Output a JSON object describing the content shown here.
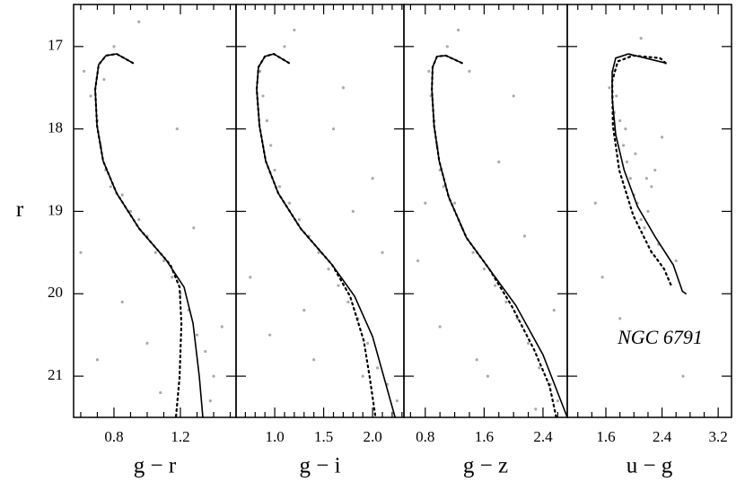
{
  "chart_data": [
    {
      "type": "scatter",
      "xlabel": "g − r",
      "ylabel": "r",
      "xlim": [
        0.557,
        1.535
      ],
      "ylim": [
        16.49,
        21.5
      ],
      "y_inverted": true,
      "xticks": [
        0.8,
        1.2
      ],
      "xminorticks": [
        0.6,
        0.7,
        0.9,
        1.0,
        1.1,
        1.3,
        1.4,
        1.5
      ],
      "yticks": [
        17,
        18,
        19,
        20,
        21
      ],
      "series": [
        {
          "style": "points",
          "color": "#aaaaaa",
          "x": [
            0.62,
            0.66,
            0.7,
            0.72,
            0.75,
            0.78,
            0.8,
            0.74,
            0.85,
            0.9,
            0.95,
            1.0,
            1.05,
            1.1,
            1.15,
            1.2,
            1.25,
            1.3,
            1.35,
            1.4,
            1.45,
            0.6,
            0.7,
            0.95,
            1.08,
            1.28,
            1.38,
            0.85,
            1.0,
            1.18
          ],
          "y": [
            17.3,
            17.6,
            17.9,
            18.2,
            18.5,
            18.7,
            17.0,
            17.4,
            18.8,
            19.0,
            19.1,
            19.3,
            19.5,
            19.6,
            19.8,
            20.0,
            20.2,
            20.5,
            20.7,
            21.0,
            20.4,
            19.5,
            20.8,
            16.7,
            21.2,
            19.2,
            21.3,
            20.1,
            20.6,
            18.0
          ]
        },
        {
          "style": "solid",
          "color": "#000000",
          "x": [
            0.914,
            0.816,
            0.752,
            0.708,
            0.687,
            0.698,
            0.735,
            0.816,
            0.952,
            1.114,
            1.222,
            1.276,
            1.314,
            1.335
          ],
          "y": [
            17.2,
            17.09,
            17.11,
            17.22,
            17.52,
            17.96,
            18.39,
            18.78,
            19.21,
            19.59,
            19.92,
            20.36,
            21.01,
            21.5
          ]
        },
        {
          "style": "dotted",
          "color": "#000000",
          "x": [
            0.914,
            0.816,
            0.752,
            0.708,
            0.687,
            0.698,
            0.735,
            0.816,
            0.952,
            1.14,
            1.195,
            1.206,
            1.195,
            1.173
          ],
          "y": [
            17.2,
            17.09,
            17.11,
            17.22,
            17.52,
            17.96,
            18.39,
            18.78,
            19.21,
            19.65,
            19.92,
            20.36,
            21.01,
            21.5
          ]
        }
      ]
    },
    {
      "type": "scatter",
      "xlabel": "g − i",
      "xlim": [
        0.605,
        2.32
      ],
      "ylim": [
        16.49,
        21.5
      ],
      "y_inverted": true,
      "xticks": [
        {
          "value": 1,
          "label": "1.0"
        },
        1.5,
        {
          "value": 2,
          "label": "2.0"
        }
      ],
      "xminorticks": [
        0.7,
        0.8,
        0.9,
        1.1,
        1.2,
        1.3,
        1.4,
        1.6,
        1.7,
        1.8,
        1.9,
        2.1,
        2.2,
        2.3
      ],
      "yticks": [
        17,
        18,
        19,
        20,
        21
      ],
      "series": [
        {
          "style": "points",
          "color": "#aaaaaa",
          "x": [
            0.85,
            0.88,
            0.92,
            0.96,
            1.0,
            1.05,
            1.1,
            1.15,
            1.25,
            1.35,
            1.45,
            1.55,
            1.65,
            1.75,
            1.85,
            1.95,
            2.05,
            2.15,
            2.25,
            0.75,
            1.2,
            1.6,
            1.9,
            2.1,
            0.95,
            1.4,
            1.7,
            2.0,
            1.3,
            1.8
          ],
          "y": [
            17.3,
            17.6,
            17.9,
            18.2,
            18.5,
            18.7,
            17.0,
            18.9,
            19.1,
            19.3,
            19.5,
            19.7,
            19.9,
            20.1,
            20.3,
            20.6,
            20.9,
            21.1,
            21.3,
            19.8,
            16.8,
            18.0,
            21.0,
            19.5,
            20.5,
            20.8,
            17.5,
            18.6,
            20.2,
            19.0
          ]
        },
        {
          "style": "solid",
          "color": "#000000",
          "x": [
            1.146,
            0.99,
            0.9,
            0.834,
            0.816,
            0.844,
            0.908,
            1.036,
            1.266,
            1.587,
            1.816,
            2.0,
            2.23
          ],
          "y": [
            17.2,
            17.09,
            17.12,
            17.25,
            17.52,
            17.96,
            18.39,
            18.78,
            19.21,
            19.65,
            20.03,
            20.52,
            21.5
          ]
        },
        {
          "style": "dotted",
          "color": "#000000",
          "x": [
            1.146,
            0.99,
            0.9,
            0.834,
            0.816,
            0.844,
            0.908,
            1.036,
            1.266,
            1.587,
            1.77,
            1.91,
            1.97,
            2.03
          ],
          "y": [
            17.2,
            17.09,
            17.12,
            17.25,
            17.52,
            17.96,
            18.39,
            18.78,
            19.21,
            19.65,
            20.03,
            20.57,
            21.01,
            21.5
          ]
        }
      ]
    },
    {
      "type": "scatter",
      "xlabel": "g − z",
      "xlim": [
        0.51,
        2.73
      ],
      "ylim": [
        16.49,
        21.5
      ],
      "y_inverted": true,
      "xticks": [
        0.8,
        1.6,
        2.4
      ],
      "xminorticks": [
        0.6,
        1.0,
        1.2,
        1.4,
        1.8,
        2.0,
        2.2,
        2.6
      ],
      "yticks": [
        17,
        18,
        19,
        20,
        21
      ],
      "series": [
        {
          "style": "points",
          "color": "#aaaaaa",
          "x": [
            0.85,
            0.88,
            0.92,
            0.96,
            1.0,
            1.05,
            1.1,
            1.2,
            1.3,
            1.45,
            1.6,
            1.75,
            1.9,
            2.05,
            2.2,
            2.35,
            2.5,
            2.6,
            0.7,
            1.25,
            1.8,
            2.3,
            2.55,
            1.0,
            1.5,
            2.0,
            0.8,
            1.4,
            2.15,
            1.65
          ],
          "y": [
            17.3,
            17.6,
            17.9,
            18.2,
            18.5,
            18.7,
            17.0,
            18.9,
            19.2,
            19.5,
            19.7,
            19.9,
            20.1,
            20.3,
            20.6,
            20.9,
            21.1,
            21.3,
            19.6,
            16.8,
            18.4,
            21.4,
            20.2,
            20.4,
            20.8,
            17.6,
            18.9,
            17.3,
            19.3,
            21.0
          ]
        },
        {
          "style": "solid",
          "color": "#000000",
          "x": [
            1.3,
            1.08,
            0.96,
            0.9,
            0.89,
            0.92,
            0.99,
            1.12,
            1.36,
            1.67,
            2.03,
            2.4,
            2.73
          ],
          "y": [
            17.2,
            17.11,
            17.12,
            17.25,
            17.52,
            17.96,
            18.39,
            18.83,
            19.32,
            19.7,
            20.14,
            20.74,
            21.5
          ]
        },
        {
          "style": "dotted",
          "color": "#000000",
          "x": [
            1.3,
            1.08,
            0.96,
            0.9,
            0.89,
            0.92,
            0.99,
            1.12,
            1.36,
            1.67,
            1.97,
            2.28,
            2.49,
            2.58
          ],
          "y": [
            17.2,
            17.11,
            17.12,
            17.25,
            17.52,
            17.96,
            18.39,
            18.83,
            19.32,
            19.7,
            20.14,
            20.68,
            21.12,
            21.5
          ]
        }
      ]
    },
    {
      "type": "scatter",
      "xlabel": "u − g",
      "annotation": "NGC 6791",
      "xlim": [
        1.05,
        3.39
      ],
      "ylim": [
        16.49,
        21.5
      ],
      "y_inverted": true,
      "xticks": [
        1.6,
        2.4,
        3.2
      ],
      "xminorticks": [
        1.2,
        1.4,
        1.8,
        2.0,
        2.2,
        2.6,
        2.8,
        3.0
      ],
      "yticks": [
        17,
        18,
        19,
        20,
        21
      ],
      "series": [
        {
          "style": "points",
          "color": "#aaaaaa",
          "x": [
            1.7,
            1.75,
            1.8,
            1.85,
            1.9,
            1.95,
            2.0,
            2.05,
            2.1,
            2.15,
            2.2,
            2.25,
            2.3,
            1.65,
            1.72,
            1.88,
            2.02,
            2.18,
            2.35,
            1.55,
            2.45,
            2.6,
            1.45,
            2.8,
            1.95,
            2.1,
            2.4,
            1.8,
            2.7,
            2.25
          ],
          "y": [
            17.3,
            17.6,
            17.9,
            18.2,
            18.4,
            18.6,
            18.8,
            18.9,
            19.1,
            19.2,
            19.0,
            18.7,
            18.5,
            17.5,
            17.8,
            18.0,
            18.3,
            18.6,
            19.4,
            19.8,
            17.2,
            19.6,
            18.9,
            20.5,
            17.1,
            16.9,
            18.1,
            20.3,
            21.0,
            19.5
          ]
        },
        {
          "style": "solid",
          "color": "#000000",
          "x": [
            2.45,
            1.92,
            1.74,
            1.69,
            1.69,
            1.74,
            1.86,
            2.05,
            2.31,
            2.56,
            2.69,
            2.74
          ],
          "y": [
            17.2,
            17.09,
            17.14,
            17.31,
            17.63,
            18.07,
            18.5,
            18.94,
            19.32,
            19.65,
            19.97,
            20.0
          ]
        },
        {
          "style": "dotted",
          "color": "#000000",
          "x": [
            2.45,
            2.37,
            1.99,
            1.77,
            1.69,
            1.7,
            1.79,
            1.99,
            2.24,
            2.43,
            2.54
          ],
          "y": [
            17.2,
            17.14,
            17.11,
            17.18,
            17.42,
            17.96,
            18.5,
            19.05,
            19.48,
            19.7,
            19.92
          ]
        }
      ]
    }
  ]
}
